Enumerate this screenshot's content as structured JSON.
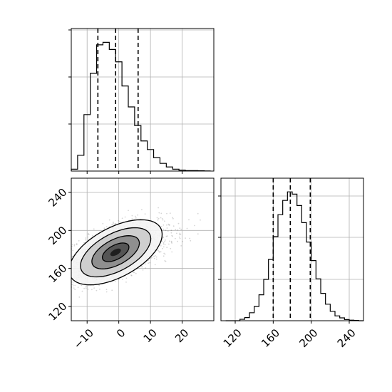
{
  "chart_data": {
    "type": "corner",
    "variables": [
      "x",
      "y"
    ],
    "panels": [
      {
        "id": "hist-x",
        "type": "histogram",
        "variable": "x",
        "xlim": [
          -15,
          30
        ],
        "bins": [
          -15,
          -13,
          -11,
          -9,
          -7,
          -5,
          -3,
          -1,
          1,
          3,
          5,
          7,
          9,
          11,
          13,
          15,
          17,
          19,
          21,
          23,
          25,
          27,
          29
        ],
        "counts": [
          1.3,
          10.8,
          38.8,
          67.2,
          86.8,
          88.5,
          83.6,
          75.1,
          58.5,
          44.1,
          31.3,
          20.7,
          14.8,
          9.2,
          5.3,
          2.8,
          1.3,
          0.6,
          0.3,
          0.3,
          0.2,
          0.1
        ],
        "quantiles": [
          -6.6,
          -1.0,
          6.1
        ],
        "ylim": [
          0,
          98
        ],
        "grid": true
      },
      {
        "id": "scatter-xy",
        "type": "2d-density",
        "xlim": [
          -15,
          30
        ],
        "ylim": [
          105,
          255
        ],
        "xticks": [
          -10,
          0,
          10,
          20
        ],
        "yticks": [
          120,
          160,
          200,
          240
        ],
        "mean": [
          -1.0,
          177
        ],
        "std": [
          6.0,
          14
        ],
        "correlation": 0.55,
        "grid": true
      },
      {
        "id": "hist-y",
        "type": "histogram",
        "variable": "y",
        "xlim": [
          105,
          255
        ],
        "xticks": [
          120,
          160,
          200,
          240
        ],
        "bins": [
          110,
          115,
          120,
          125,
          130,
          135,
          140,
          145,
          150,
          155,
          160,
          165,
          170,
          175,
          180,
          185,
          190,
          195,
          200,
          205,
          210,
          215,
          220,
          225,
          230,
          235,
          240,
          245,
          250,
          255
        ],
        "counts": [
          0,
          0,
          0,
          0.5,
          1.1,
          2.8,
          5.0,
          9.1,
          14.5,
          21.5,
          29.5,
          37.2,
          42.2,
          45.2,
          44.4,
          40.4,
          34.4,
          27.6,
          21.1,
          14.7,
          9.6,
          5.8,
          3.3,
          1.7,
          1.0,
          0.4,
          0.2,
          0.1,
          0
        ],
        "quantiles": [
          160,
          178,
          199
        ],
        "ylim": [
          0,
          50
        ],
        "grid": true
      }
    ]
  }
}
